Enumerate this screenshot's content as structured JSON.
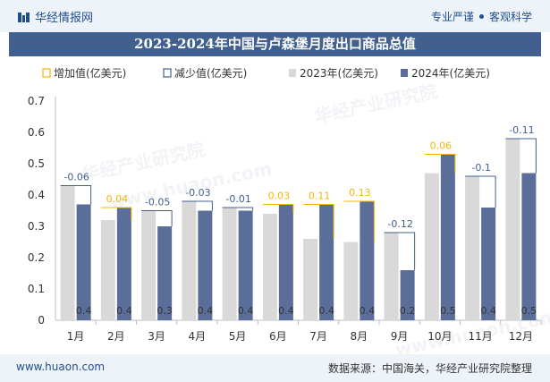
{
  "header": {
    "brand": "华经情报网",
    "tag1": "专业严谨",
    "tag2": "客观科学"
  },
  "title": "2023-2024年中国与卢森堡月度出口商品总值",
  "footer": {
    "site": "www.huaon.com",
    "source": "数据来源：中国海关，华经产业研究院整理"
  },
  "watermarks": [
    "华经产业研究院",
    "www.huaon.com",
    "华经产业研究院",
    "www.huaon.com"
  ],
  "colors": {
    "increase": "#f2b705",
    "decrease": "#41608f",
    "bar2023": "#d9d9d9",
    "bar2024": "#5b6e99"
  },
  "chart_data": {
    "type": "bar",
    "title": "2023-2024年中国与卢森堡月度出口商品总值",
    "categories": [
      "1月",
      "2月",
      "3月",
      "4月",
      "5月",
      "6月",
      "7月",
      "8月",
      "9月",
      "10月",
      "11月",
      "12月"
    ],
    "series": [
      {
        "name": "2023年(亿美元)",
        "values": [
          0.43,
          0.32,
          0.35,
          0.38,
          0.36,
          0.34,
          0.26,
          0.25,
          0.28,
          0.47,
          0.46,
          0.58
        ]
      },
      {
        "name": "2024年(亿美元)",
        "values": [
          0.37,
          0.36,
          0.3,
          0.35,
          0.35,
          0.37,
          0.37,
          0.38,
          0.16,
          0.53,
          0.36,
          0.47
        ]
      }
    ],
    "change": [
      "-0.06",
      "0.04",
      "-0.05",
      "-0.03",
      "-0.01",
      "0.03",
      "0.11",
      "0.13",
      "-0.12",
      "0.06",
      "-0.1",
      "-0.11"
    ],
    "bar_labels_2024": [
      "0.4",
      "0.4",
      "0.3",
      "0.4",
      "0.4",
      "0.4",
      "0.4",
      "0.4",
      "0.2",
      "0.5",
      "0.4",
      "0.5"
    ],
    "legend": [
      "增加值(亿美元)",
      "减少值(亿美元)",
      "2023年(亿美元)",
      "2024年(亿美元)"
    ],
    "y_ticks": [
      "0",
      "0.1",
      "0.2",
      "0.3",
      "0.4",
      "0.5",
      "0.6",
      "0.7"
    ],
    "ylim": [
      0,
      0.7
    ],
    "legend_position": "top",
    "grid": false
  }
}
